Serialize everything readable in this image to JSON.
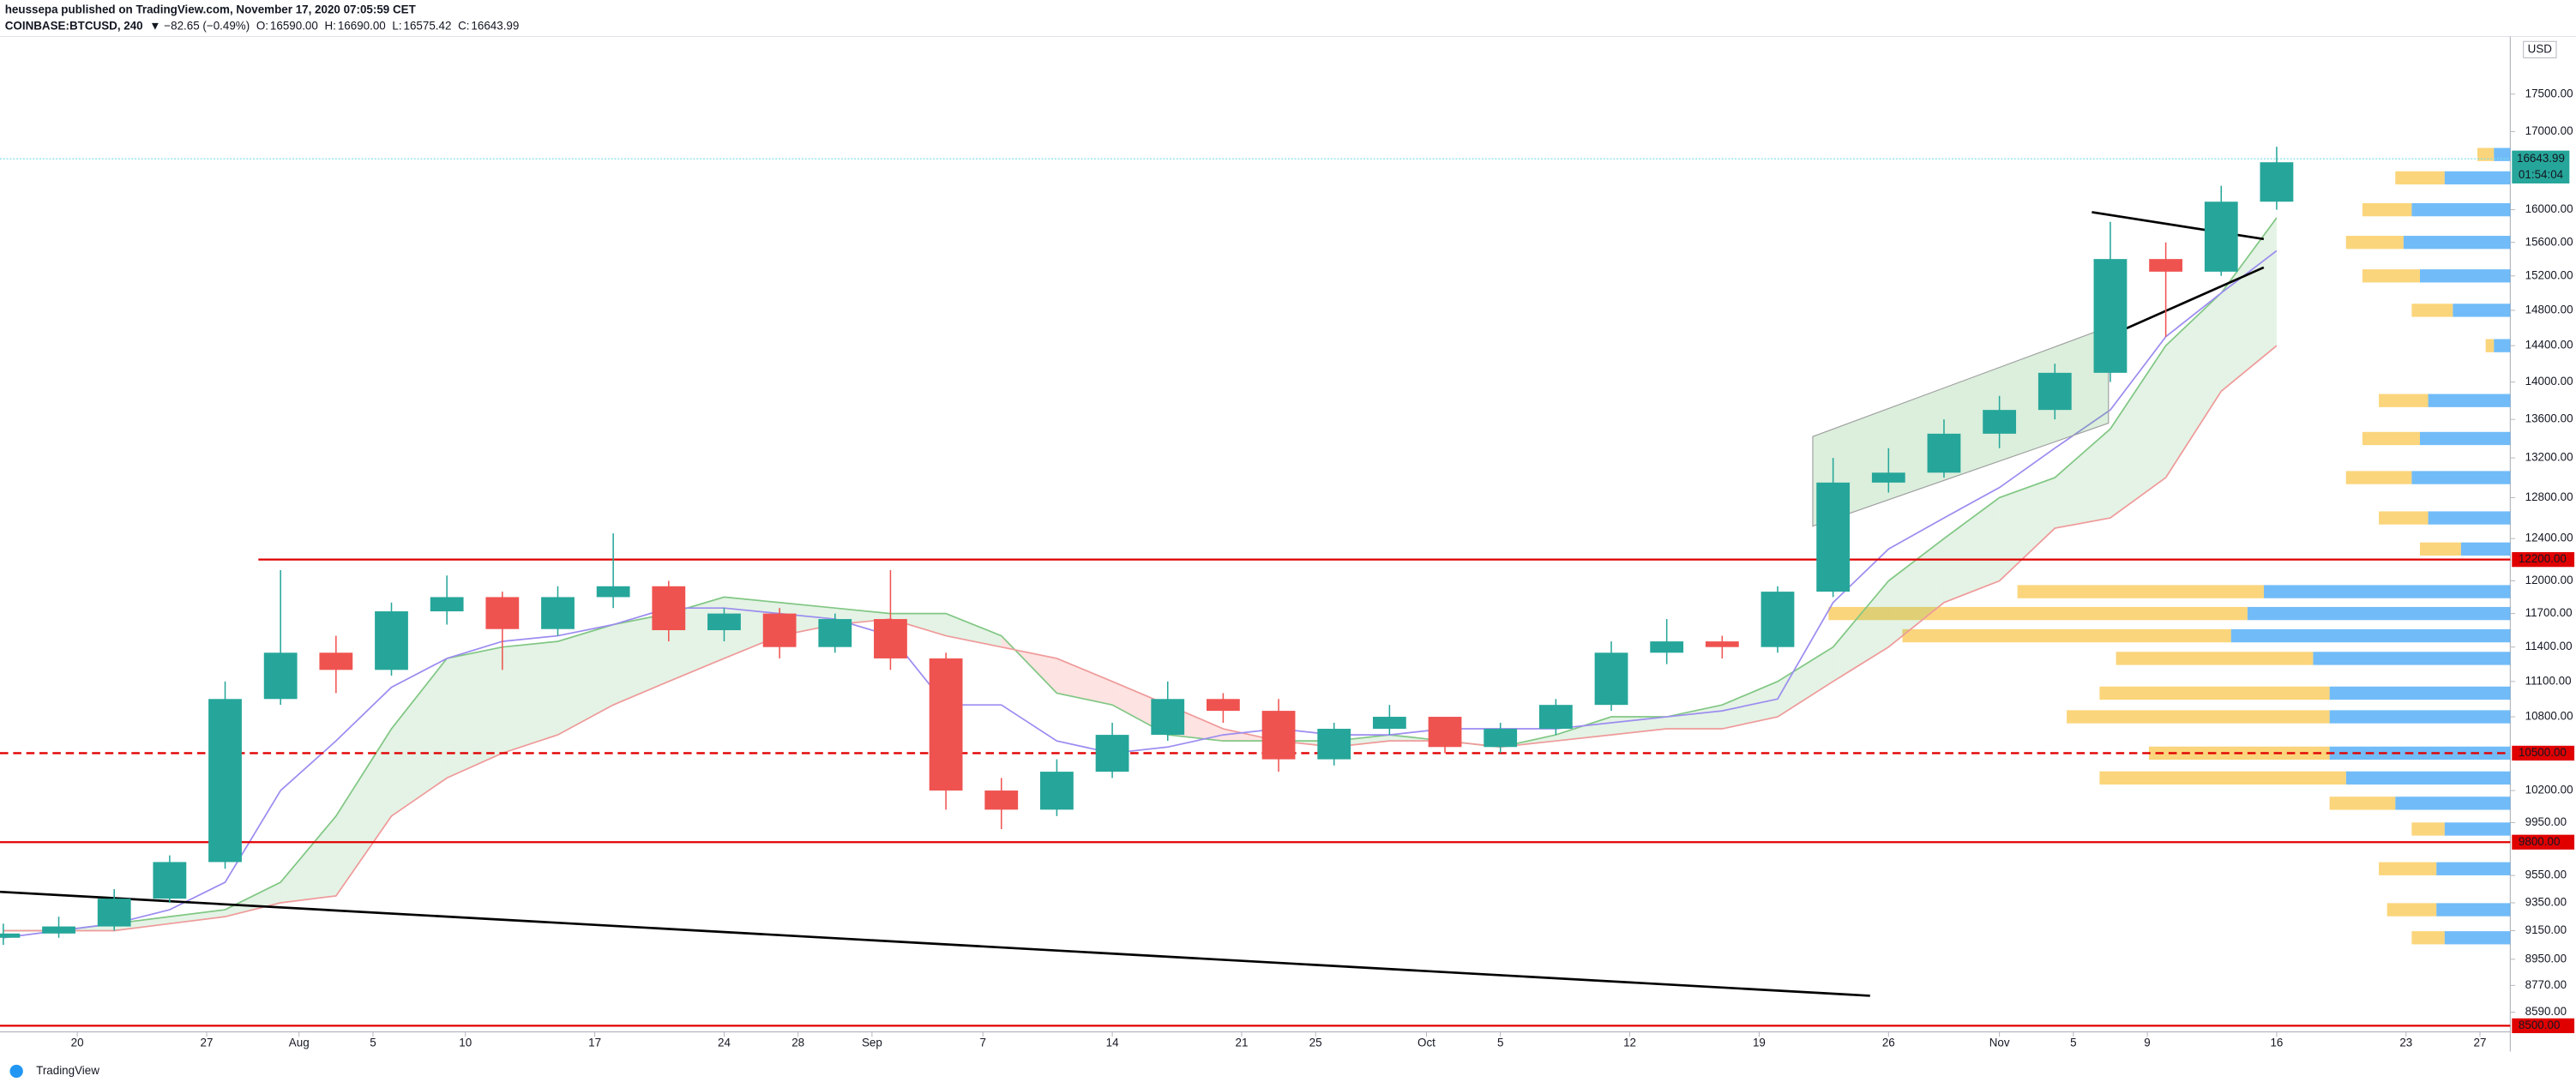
{
  "chart_data": {
    "type": "candlestick",
    "header": {
      "publisher": "heussepa published on TradingView.com, November 17, 2020 07:05:59 CET",
      "symbol": "COINBASE:BTCUSD, 240",
      "change": "▼ −82.65 (−0.49%)",
      "ohlc": [
        {
          "label": "O:",
          "value": "16590.00"
        },
        {
          "label": "H:",
          "value": "16690.00"
        },
        {
          "label": "L:",
          "value": "16575.42"
        },
        {
          "label": "C:",
          "value": "16643.99"
        }
      ]
    },
    "footer": "TradingView",
    "currency": "USD",
    "log_scale": true,
    "grid": false,
    "up_color": "#26a69a",
    "down_color": "#ef5350",
    "xlim": [
      -4.18,
      131.64
    ],
    "ylim": [
      8460,
      18300
    ],
    "xticks": [
      {
        "value": 0,
        "label": "20"
      },
      {
        "value": 7,
        "label": "27"
      },
      {
        "value": 12,
        "label": "Aug"
      },
      {
        "value": 16,
        "label": "5"
      },
      {
        "value": 21,
        "label": "10"
      },
      {
        "value": 28,
        "label": "17"
      },
      {
        "value": 35,
        "label": "24"
      },
      {
        "value": 39,
        "label": "28"
      },
      {
        "value": 43,
        "label": "Sep"
      },
      {
        "value": 49,
        "label": "7"
      },
      {
        "value": 56,
        "label": "14"
      },
      {
        "value": 63,
        "label": "21"
      },
      {
        "value": 67,
        "label": "25"
      },
      {
        "value": 73,
        "label": "Oct"
      },
      {
        "value": 77,
        "label": "5"
      },
      {
        "value": 84,
        "label": "12"
      },
      {
        "value": 91,
        "label": "19"
      },
      {
        "value": 98,
        "label": "26"
      },
      {
        "value": 104,
        "label": "Nov"
      },
      {
        "value": 108,
        "label": "5"
      },
      {
        "value": 112,
        "label": "9"
      },
      {
        "value": 119,
        "label": "16"
      },
      {
        "value": 126,
        "label": "23"
      },
      {
        "value": 130,
        "label": "27"
      }
    ],
    "yticks": [
      {
        "value": 17500,
        "label": "17500.00"
      },
      {
        "value": 17000,
        "label": "17000.00"
      },
      {
        "value": 16000,
        "label": "16000.00"
      },
      {
        "value": 15600,
        "label": "15600.00"
      },
      {
        "value": 15200,
        "label": "15200.00"
      },
      {
        "value": 14800,
        "label": "14800.00"
      },
      {
        "value": 14400,
        "label": "14400.00"
      },
      {
        "value": 14000,
        "label": "14000.00"
      },
      {
        "value": 13600,
        "label": "13600.00"
      },
      {
        "value": 13200,
        "label": "13200.00"
      },
      {
        "value": 12800,
        "label": "12800.00"
      },
      {
        "value": 12400,
        "label": "12400.00"
      },
      {
        "value": 12000,
        "label": "12000.00"
      },
      {
        "value": 11700,
        "label": "11700.00"
      },
      {
        "value": 11400,
        "label": "11400.00"
      },
      {
        "value": 11100,
        "label": "11100.00"
      },
      {
        "value": 10800,
        "label": "10800.00"
      },
      {
        "value": 10200,
        "label": "10200.00"
      },
      {
        "value": 9950,
        "label": "9950.00"
      },
      {
        "value": 9550,
        "label": "9550.00"
      },
      {
        "value": 9350,
        "label": "9350.00"
      },
      {
        "value": 9150,
        "label": "9150.00"
      },
      {
        "value": 8950,
        "label": "8950.00"
      },
      {
        "value": 8770,
        "label": "8770.00"
      },
      {
        "value": 8590,
        "label": "8590.00"
      }
    ],
    "candles": {
      "x": [
        -4,
        -1,
        2,
        5,
        8,
        11,
        14,
        17,
        20,
        23,
        26,
        29,
        32,
        35,
        38,
        41,
        44,
        47,
        50,
        53,
        56,
        59,
        62,
        65,
        68,
        71,
        74,
        77,
        80,
        83,
        86,
        89,
        92,
        95,
        98,
        101,
        104,
        107,
        110,
        113,
        116,
        119
      ],
      "open": [
        9100,
        9130,
        9180,
        9380,
        9650,
        10950,
        11350,
        11200,
        11720,
        11850,
        11560,
        11850,
        11950,
        11550,
        11700,
        11400,
        11650,
        11300,
        10200,
        10050,
        10350,
        10650,
        10950,
        10850,
        10450,
        10700,
        10800,
        10550,
        10700,
        10900,
        11350,
        11450,
        11400,
        11900,
        12950,
        13050,
        13450,
        13700,
        14100,
        15400,
        15250,
        16100
      ],
      "high": [
        9200,
        9250,
        9450,
        9700,
        11100,
        12100,
        11500,
        11800,
        12050,
        11900,
        11950,
        12450,
        12000,
        11750,
        11750,
        11700,
        12100,
        11350,
        10300,
        10450,
        10750,
        11100,
        11000,
        10950,
        10750,
        10900,
        10800,
        10750,
        10950,
        11450,
        11650,
        11500,
        11950,
        13200,
        13300,
        13600,
        13850,
        14200,
        15850,
        15600,
        16300,
        16800
      ],
      "low": [
        9050,
        9100,
        9150,
        9350,
        9600,
        10900,
        11000,
        11150,
        11600,
        11200,
        11500,
        11750,
        11450,
        11450,
        11300,
        11350,
        11200,
        10050,
        9900,
        10000,
        10300,
        10600,
        10750,
        10350,
        10400,
        10650,
        10500,
        10500,
        10650,
        10850,
        11250,
        11300,
        11350,
        11850,
        12850,
        13000,
        13300,
        13600,
        14000,
        14500,
        15200,
        16000
      ],
      "close": [
        9130,
        9180,
        9380,
        9650,
        10950,
        11350,
        11200,
        11720,
        11850,
        11560,
        11850,
        11950,
        11550,
        11700,
        11400,
        11650,
        11300,
        10200,
        10050,
        10350,
        10650,
        10950,
        10850,
        10450,
        10700,
        10800,
        10550,
        10700,
        10900,
        11350,
        11450,
        11400,
        11900,
        12950,
        13050,
        13450,
        13700,
        14100,
        15400,
        15250,
        16100,
        16600
      ]
    },
    "indicators": {
      "kijun": {
        "color": "#9c8cf0",
        "values": [
          9100,
          9150,
          9200,
          9300,
          9500,
          10200,
          10600,
          11050,
          11300,
          11450,
          11500,
          11600,
          11750,
          11750,
          11700,
          11650,
          11500,
          10900,
          10900,
          10600,
          10500,
          10550,
          10650,
          10700,
          10650,
          10650,
          10700,
          10700,
          10700,
          10750,
          10800,
          10850,
          10950,
          11800,
          12300,
          12600,
          12900,
          13300,
          13700,
          14500,
          15000,
          15500
        ]
      },
      "span_a": {
        "color": "#81c784",
        "values": [
          9150,
          9150,
          9200,
          9250,
          9300,
          9500,
          10000,
          10700,
          11300,
          11400,
          11450,
          11600,
          11700,
          11850,
          11800,
          11750,
          11700,
          11700,
          11500,
          11000,
          10900,
          10650,
          10600,
          10600,
          10600,
          10650,
          10600,
          10550,
          10650,
          10800,
          10800,
          10900,
          11100,
          11400,
          12000,
          12400,
          12800,
          13000,
          13500,
          14400,
          15000,
          15900
        ]
      },
      "span_b": {
        "color": "#ef9a9a",
        "values": [
          9150,
          9150,
          9150,
          9200,
          9250,
          9350,
          9400,
          10000,
          10300,
          10500,
          10650,
          10900,
          11100,
          11300,
          11500,
          11600,
          11650,
          11500,
          11400,
          11300,
          11100,
          10900,
          10700,
          10600,
          10550,
          10600,
          10600,
          10550,
          10600,
          10650,
          10700,
          10700,
          10800,
          11100,
          11400,
          11800,
          12000,
          12500,
          12600,
          13000,
          13900,
          14400
        ]
      },
      "cloud_up": "rgba(76,175,80,0.15)",
      "cloud_down": "rgba(244,67,54,0.15)"
    },
    "levels": [
      {
        "value": 12200,
        "label": "12200.00",
        "from_x": 9.8,
        "dashed": false
      },
      {
        "value": 10500,
        "label": "10500.00",
        "dashed": true
      },
      {
        "value": 9800,
        "label": "9800.00",
        "dashed": false
      },
      {
        "value": 8500,
        "label": "8500.00",
        "dashed": false
      }
    ],
    "level_color": "#e00000",
    "drawings": [
      {
        "color": "#000000",
        "x": [
          -4.18,
          97.0
        ],
        "y": [
          9430,
          8700
        ]
      },
      {
        "color": "#000000",
        "x": [
          109.0,
          118.3
        ],
        "y": [
          15970,
          15640
        ]
      },
      {
        "color": "#000000",
        "x": [
          110.5,
          118.3
        ],
        "y": [
          14560,
          15300
        ]
      }
    ],
    "channel": {
      "color": "rgba(76,175,80,0.2)",
      "x": [
        93.9,
        109.9
      ],
      "upper": [
        13420,
        14610
      ],
      "lower": [
        12520,
        13560
      ]
    },
    "current": {
      "value": 16643.99,
      "label": "16643.99",
      "countdown": "01:54:04",
      "color": "#26a69a"
    },
    "volume_profile": {
      "up_color": "#42a5f5",
      "down_color": "#f9c74f",
      "price": [
        16700,
        16400,
        16000,
        15600,
        15200,
        14800,
        14400,
        13800,
        13400,
        13000,
        12600,
        12300,
        11900,
        11700,
        11500,
        11300,
        11000,
        10800,
        10500,
        10300,
        10100,
        9900,
        9600,
        9300,
        9100
      ],
      "up": [
        10,
        40,
        60,
        65,
        55,
        35,
        10,
        50,
        55,
        60,
        50,
        30,
        150,
        160,
        170,
        120,
        110,
        110,
        110,
        100,
        70,
        40,
        45,
        45,
        40
      ],
      "down": [
        10,
        30,
        30,
        35,
        35,
        25,
        5,
        30,
        35,
        40,
        30,
        25,
        150,
        255,
        200,
        120,
        140,
        160,
        110,
        150,
        40,
        20,
        35,
        30,
        20
      ]
    }
  }
}
